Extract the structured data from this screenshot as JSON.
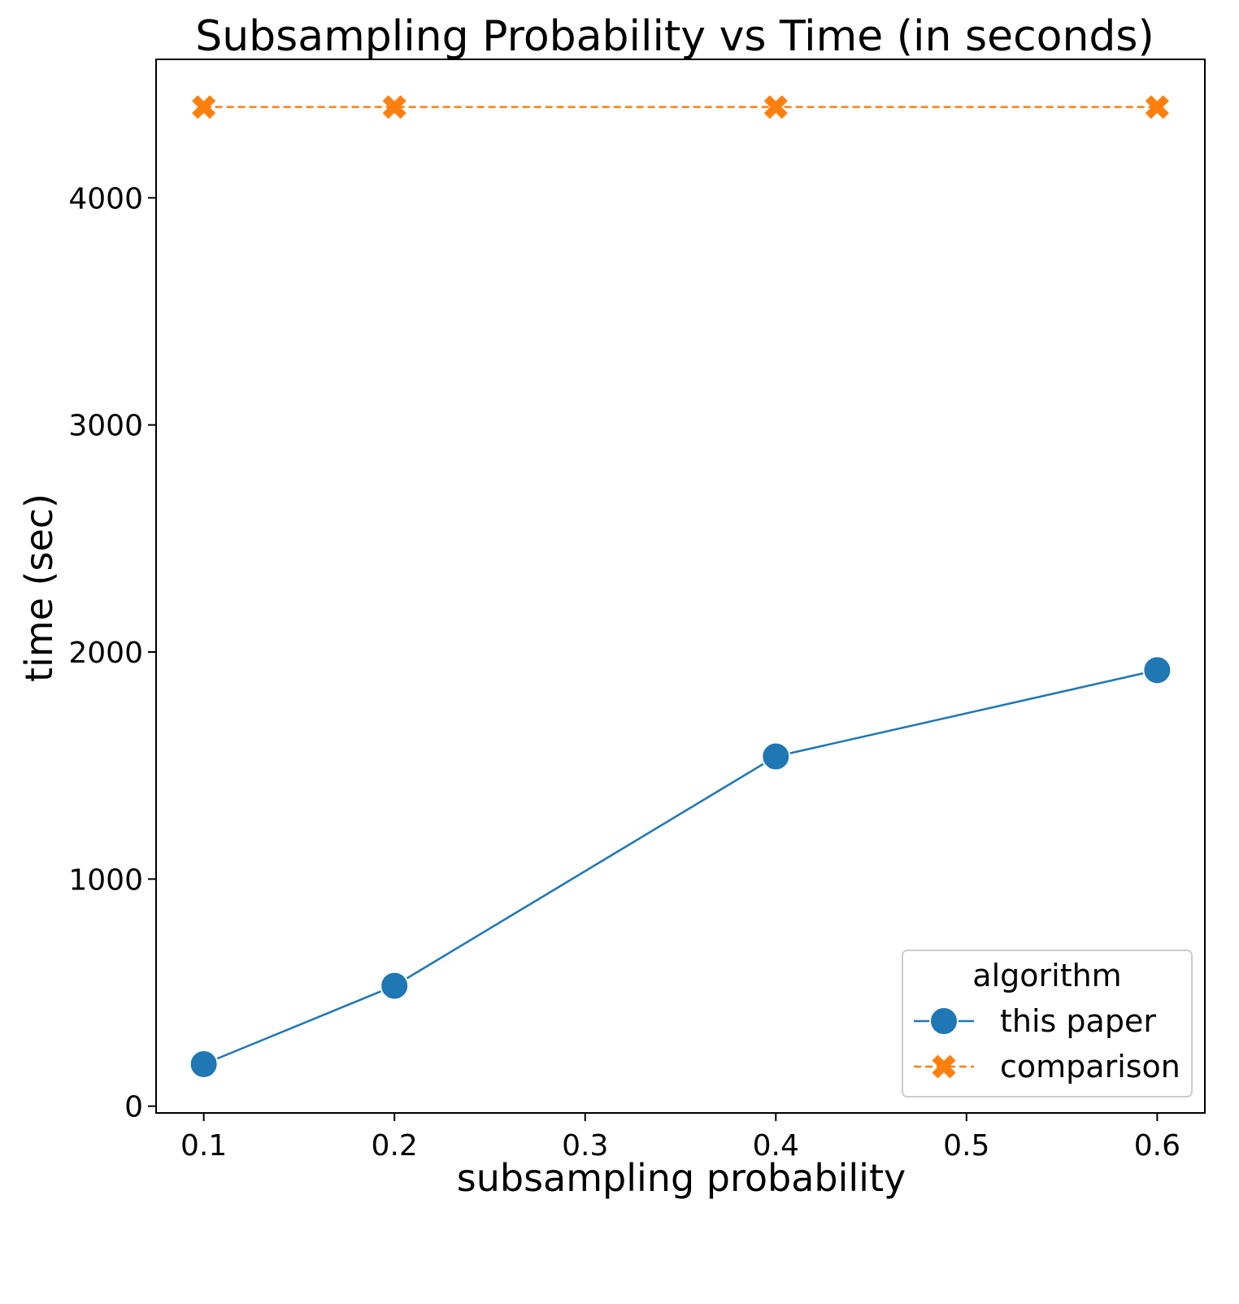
{
  "chart_data": {
    "type": "line",
    "title": "Subsampling Probability vs Time (in seconds)",
    "xlabel": "subsampling probability",
    "ylabel": "time (sec)",
    "x_ticks": [
      "0.1",
      "0.2",
      "0.3",
      "0.4",
      "0.5",
      "0.6"
    ],
    "y_ticks": [
      "0",
      "1000",
      "2000",
      "3000",
      "4000"
    ],
    "xlim": [
      0.075,
      0.625
    ],
    "ylim": [
      -30,
      4610
    ],
    "grid": false,
    "legend": {
      "title": "algorithm",
      "placement": "lower right"
    },
    "series": [
      {
        "name": "this paper",
        "color": "#1f77b4",
        "marker": "circle",
        "line_style": "solid",
        "x": [
          0.1,
          0.2,
          0.4,
          0.6
        ],
        "y": [
          185,
          530,
          1540,
          1920
        ]
      },
      {
        "name": "comparison",
        "color": "#ff7f0e",
        "marker": "x",
        "line_style": "dashed",
        "x": [
          0.1,
          0.2,
          0.4,
          0.6
        ],
        "y": [
          4400,
          4400,
          4400,
          4400
        ]
      }
    ]
  }
}
